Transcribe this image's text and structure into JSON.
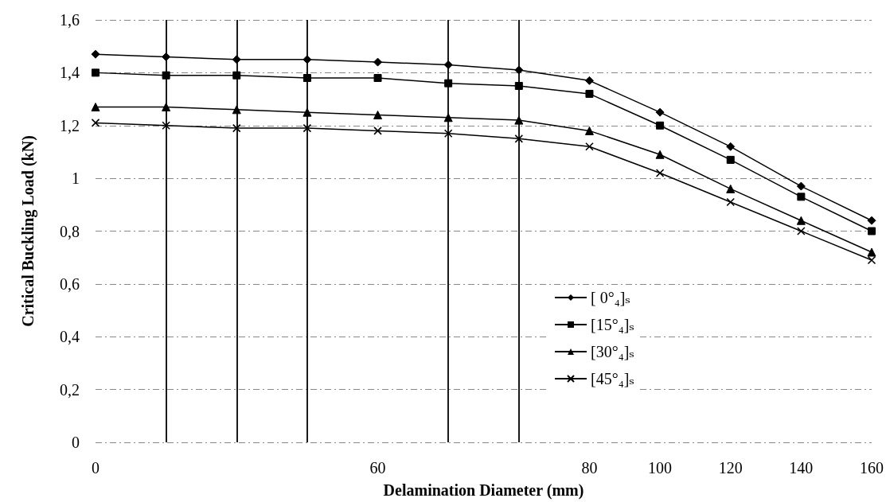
{
  "chart_data": {
    "type": "line",
    "xlabel": "Delamination Diameter (mm)",
    "ylabel": "Critical Buckling Load (kN)",
    "categories": [
      "0",
      null,
      null,
      null,
      "60",
      null,
      null,
      "80",
      "100",
      "120",
      "140",
      "160"
    ],
    "series": [
      {
        "name": "[ 0°₄]ₛ",
        "color": "#000000",
        "marker": "diamond",
        "values": [
          1.47,
          1.46,
          1.45,
          1.45,
          1.44,
          1.43,
          1.41,
          1.37,
          1.25,
          1.12,
          0.97,
          0.84
        ]
      },
      {
        "name": "[15°₄]ₛ",
        "color": "#000000",
        "marker": "square",
        "values": [
          1.4,
          1.39,
          1.39,
          1.38,
          1.38,
          1.36,
          1.35,
          1.32,
          1.2,
          1.07,
          0.93,
          0.8
        ]
      },
      {
        "name": "[30°₄]ₛ",
        "color": "#000000",
        "marker": "triangle",
        "values": [
          1.27,
          1.27,
          1.26,
          1.25,
          1.24,
          1.23,
          1.22,
          1.18,
          1.09,
          0.96,
          0.84,
          0.72
        ]
      },
      {
        "name": "[45°₄]ₛ",
        "color": "#000000",
        "marker": "cross",
        "values": [
          1.21,
          1.2,
          1.19,
          1.19,
          1.18,
          1.17,
          1.15,
          1.12,
          1.02,
          0.91,
          0.8,
          0.69
        ]
      }
    ],
    "ylim": [
      0,
      1.6
    ],
    "yticks": [
      0,
      {
        "value": 0.2,
        "label": "0,2"
      },
      {
        "value": 0.4,
        "label": "0,4"
      },
      {
        "value": 0.6,
        "label": "0,6"
      },
      {
        "value": 0.8,
        "label": "0,8"
      },
      1,
      {
        "value": 1.2,
        "label": "1,2"
      },
      {
        "value": 1.4,
        "label": "1,4"
      },
      {
        "value": 1.6,
        "label": "1,6"
      }
    ],
    "grid": true,
    "legend": "bottom",
    "line_style": "solid"
  }
}
